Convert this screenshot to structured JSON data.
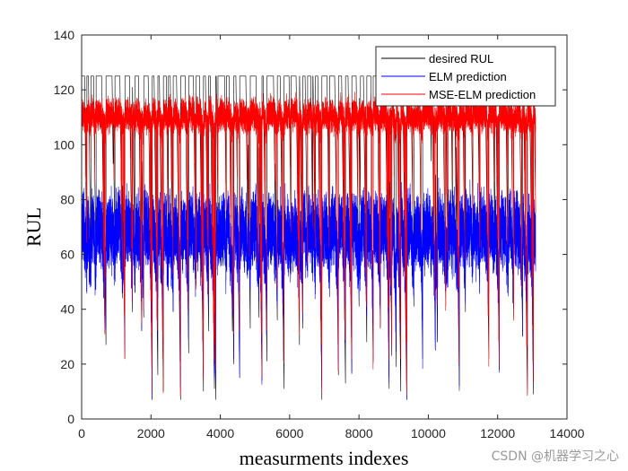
{
  "chart_data": {
    "type": "line",
    "title": "",
    "xlabel": "measurments indexes",
    "ylabel": "RUL",
    "xlim": [
      0,
      14000
    ],
    "ylim": [
      0,
      140
    ],
    "xticks": [
      0,
      2000,
      4000,
      6000,
      8000,
      10000,
      12000,
      14000
    ],
    "yticks": [
      0,
      20,
      40,
      60,
      80,
      100,
      120,
      140
    ],
    "xtick_labels": [
      "0",
      "2000",
      "4000",
      "6000",
      "8000",
      "10000",
      "12000",
      "14000"
    ],
    "ytick_labels": [
      "0",
      "20",
      "40",
      "60",
      "80",
      "100",
      "120",
      "140"
    ],
    "grid": false,
    "legend_position": "top-right",
    "n_points": 13096,
    "series": [
      {
        "name": "desired RUL",
        "color": "#000000",
        "plateau": 125,
        "min_observed": 7,
        "description_values": {
          "cap": 125,
          "range": [
            7,
            125
          ]
        }
      },
      {
        "name": "ELM prediction",
        "color": "#0000ff",
        "description_values": {
          "band": [
            45,
            80
          ],
          "range": [
            7,
            95
          ]
        }
      },
      {
        "name": "MSE-ELM prediction",
        "color": "#ff0000",
        "description_values": {
          "band": [
            98,
            118
          ],
          "range": [
            7,
            122
          ]
        }
      }
    ]
  },
  "watermark": {
    "text": "CSDN @机器学习之心"
  }
}
